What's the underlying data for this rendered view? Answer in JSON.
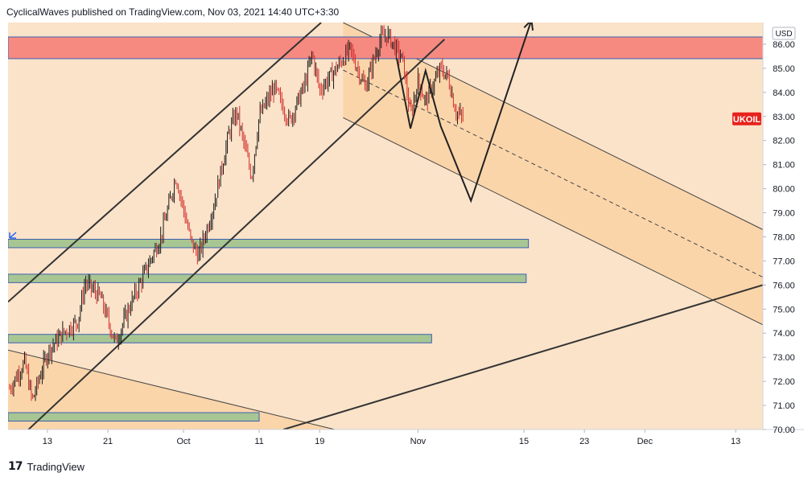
{
  "header": {
    "publish_line": "CyclicalWaves published on TradingView.com, Nov 03, 2021 14:40 UTC+3:30"
  },
  "footer": {
    "logo_glyph": "17",
    "brand": "TradingView"
  },
  "chart_data": {
    "type": "candlestick",
    "symbol_label": "UKOIL",
    "last_price": 82.9,
    "currency_label": "USD",
    "y_ticks": [
      "86.00",
      "85.00",
      "84.00",
      "83.00",
      "82.00",
      "81.00",
      "80.00",
      "79.00",
      "78.00",
      "77.00",
      "76.00",
      "75.00",
      "74.00",
      "73.00",
      "72.00",
      "71.00",
      "70.00"
    ],
    "ylim": [
      70.0,
      86.9
    ],
    "x_ticks": [
      {
        "label": "13",
        "day": 0
      },
      {
        "label": "21",
        "day": 8
      },
      {
        "label": "Oct",
        "day": 18
      },
      {
        "label": "11",
        "day": 28
      },
      {
        "label": "19",
        "day": 36
      },
      {
        "label": "Nov",
        "day": 49
      },
      {
        "label": "15",
        "day": 63
      },
      {
        "label": "23",
        "day": 71
      },
      {
        "label": "Dec",
        "day": 79
      },
      {
        "label": "13",
        "day": 91
      }
    ],
    "x_range": [
      -5.2,
      94.6
    ],
    "series": [
      {
        "keypoints": [
          {
            "day": -5,
            "price": 71.7
          },
          {
            "day": -3,
            "price": 72.8
          },
          {
            "day": -2,
            "price": 71.2
          },
          {
            "day": 0,
            "price": 73.2
          },
          {
            "day": 2,
            "price": 74.0
          },
          {
            "day": 4,
            "price": 74.5
          },
          {
            "day": 5,
            "price": 76.1
          },
          {
            "day": 7,
            "price": 75.5
          },
          {
            "day": 9,
            "price": 73.6
          },
          {
            "day": 11,
            "price": 75.2
          },
          {
            "day": 13,
            "price": 76.6
          },
          {
            "day": 15,
            "price": 78.0
          },
          {
            "day": 17,
            "price": 80.5
          },
          {
            "day": 19,
            "price": 77.8
          },
          {
            "day": 20,
            "price": 77.2
          },
          {
            "day": 22,
            "price": 79.3
          },
          {
            "day": 24,
            "price": 82.3
          },
          {
            "day": 25,
            "price": 83.2
          },
          {
            "day": 27,
            "price": 80.5
          },
          {
            "day": 28,
            "price": 83.0
          },
          {
            "day": 30,
            "price": 84.2
          },
          {
            "day": 32,
            "price": 82.8
          },
          {
            "day": 34,
            "price": 84.3
          },
          {
            "day": 35,
            "price": 85.6
          },
          {
            "day": 36,
            "price": 84.1
          },
          {
            "day": 38,
            "price": 84.9
          },
          {
            "day": 40,
            "price": 85.8
          },
          {
            "day": 42,
            "price": 84.2
          },
          {
            "day": 44,
            "price": 86.2
          },
          {
            "day": 45,
            "price": 86.4
          },
          {
            "day": 47,
            "price": 85.3
          },
          {
            "day": 48,
            "price": 83.0
          },
          {
            "day": 49,
            "price": 84.5
          },
          {
            "day": 50,
            "price": 83.6
          },
          {
            "day": 52,
            "price": 85.0
          },
          {
            "day": 53,
            "price": 84.6
          },
          {
            "day": 54,
            "price": 83.2
          },
          {
            "day": 55,
            "price": 82.9
          }
        ]
      }
    ],
    "zones": [
      {
        "name": "resistance-zone",
        "y_low": 85.4,
        "y_high": 86.3,
        "day_start": -5.2,
        "day_end": 94.6,
        "fill": "#f68a80",
        "stroke": "#3b5fb2"
      },
      {
        "name": "support-zone",
        "y_low": 77.55,
        "y_high": 77.9,
        "day_start": -5.2,
        "day_end": 63.6,
        "fill": "#a7c693",
        "stroke": "#3b5fb2"
      },
      {
        "name": "support-zone",
        "y_low": 76.1,
        "y_high": 76.45,
        "day_start": -5.2,
        "day_end": 63.3,
        "fill": "#a7c693",
        "stroke": "#3b5fb2"
      },
      {
        "name": "support-zone",
        "y_low": 73.6,
        "y_high": 73.95,
        "day_start": -5.2,
        "day_end": 50.8,
        "fill": "#a7c693",
        "stroke": "#3b5fb2"
      },
      {
        "name": "support-zone",
        "y_low": 70.35,
        "y_high": 70.7,
        "day_start": -5.2,
        "day_end": 28.0,
        "fill": "#a7c693",
        "stroke": "#3b5fb2"
      }
    ],
    "channels": [
      {
        "name": "down-channel",
        "from": {
          "day": 39.1,
          "price": 86.9
        },
        "to": {
          "day": 94.6,
          "price": 78.3
        },
        "parallel_price_offset": -3.95,
        "fill": "#fad2a5",
        "stroke": "#444444",
        "midline": true
      },
      {
        "name": "bottom-left-channel",
        "from": {
          "day": -5.2,
          "price": 73.3
        },
        "to": {
          "day": 38.0,
          "price": 70.0
        },
        "fill": "#fad2a5",
        "stroke": "#444444"
      }
    ],
    "trend_lines": [
      {
        "name": "up-channel-upper",
        "from": {
          "day": -5.2,
          "price": 75.3
        },
        "to": {
          "day": 36.2,
          "price": 86.9
        }
      },
      {
        "name": "up-channel-lower",
        "from": {
          "day": -2.5,
          "price": 70.0
        },
        "to": {
          "day": 52.5,
          "price": 86.2
        }
      },
      {
        "name": "long-trend-line",
        "from": {
          "day": 31.2,
          "price": 70.0
        },
        "to": {
          "day": 94.6,
          "price": 76.0
        }
      }
    ],
    "projection": {
      "points": [
        {
          "day": 46.2,
          "price": 85.4
        },
        {
          "day": 48.0,
          "price": 82.5
        },
        {
          "day": 50.0,
          "price": 84.9
        },
        {
          "day": 52.0,
          "price": 82.6
        },
        {
          "day": 56.0,
          "price": 79.5
        },
        {
          "day": 64.0,
          "price": 87.0
        }
      ]
    },
    "x_axis_glyph": "‸"
  }
}
